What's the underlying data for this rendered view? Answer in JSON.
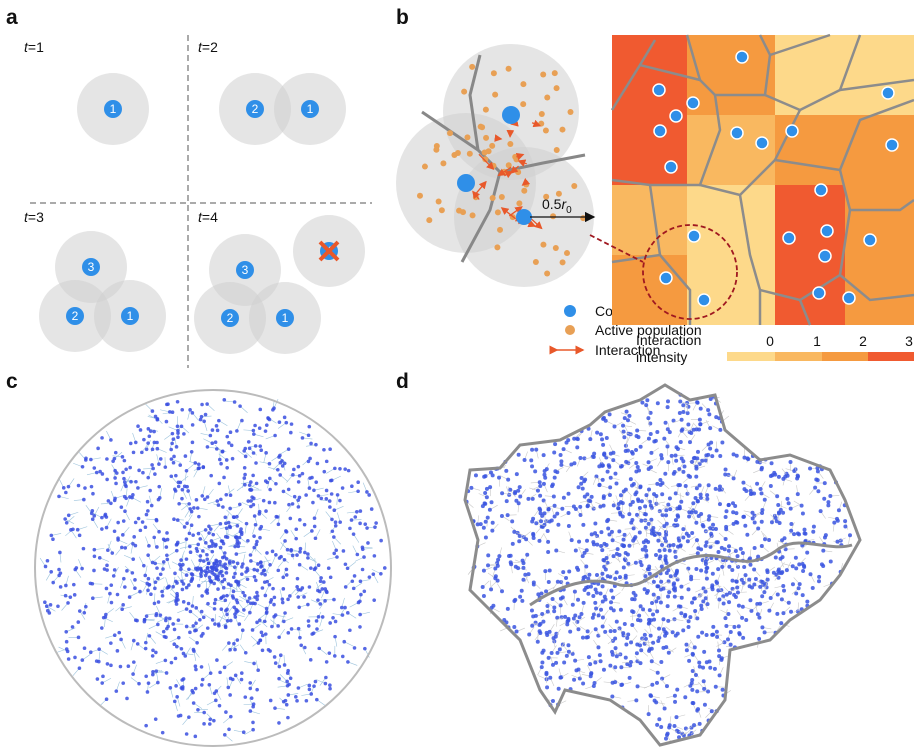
{
  "panels": {
    "a": {
      "label": "a",
      "frames": [
        {
          "time": {
            "symbol": "t",
            "rest": "=1"
          },
          "communities": [
            "1"
          ]
        },
        {
          "time": {
            "symbol": "t",
            "rest": "=2"
          },
          "communities": [
            "2",
            "1"
          ]
        },
        {
          "time": {
            "symbol": "t",
            "rest": "=3"
          },
          "communities": [
            "3",
            "2",
            "1"
          ]
        },
        {
          "time": {
            "symbol": "t",
            "rest": "=4"
          },
          "communities": [
            "3",
            "2",
            "1",
            "4"
          ]
        }
      ]
    },
    "b": {
      "label": "b",
      "radius_label": {
        "coefficient": "0.5",
        "symbol": "r",
        "subscript": "0"
      },
      "legend": [
        "Community",
        "Active population",
        "Interaction"
      ],
      "colorbar": {
        "title": "Interaction intensity",
        "ticks": [
          0,
          1,
          2,
          3
        ]
      }
    },
    "c": {
      "label": "c"
    },
    "d": {
      "label": "d"
    }
  }
}
